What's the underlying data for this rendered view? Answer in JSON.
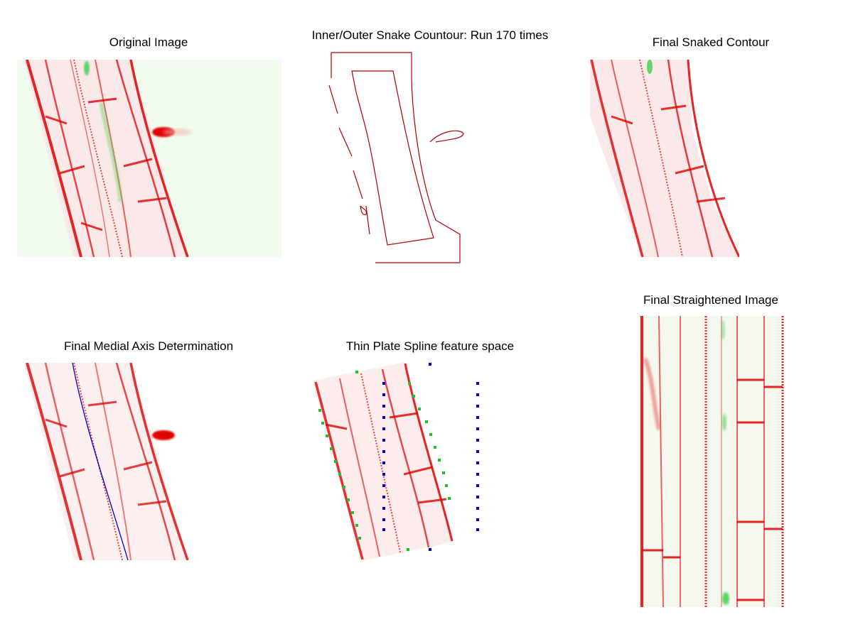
{
  "figure": {
    "titles": {
      "original": "Original Image",
      "snake": "Inner/Outer Snake Countour: Run 170 times",
      "snaked": "Final Snaked Contour",
      "medial": "Final Medial Axis Determination",
      "tps": "Thin Plate Spline feature space",
      "straightened": "Final Straightened Image"
    },
    "colors": {
      "cell_wall": "#e00000",
      "fluorescence": "#3fd04a",
      "medial_axis": "#0000cc",
      "tps_source_points": "#22c02a",
      "tps_target_points": "#0000cc",
      "snake_contour": "#b00000"
    }
  }
}
